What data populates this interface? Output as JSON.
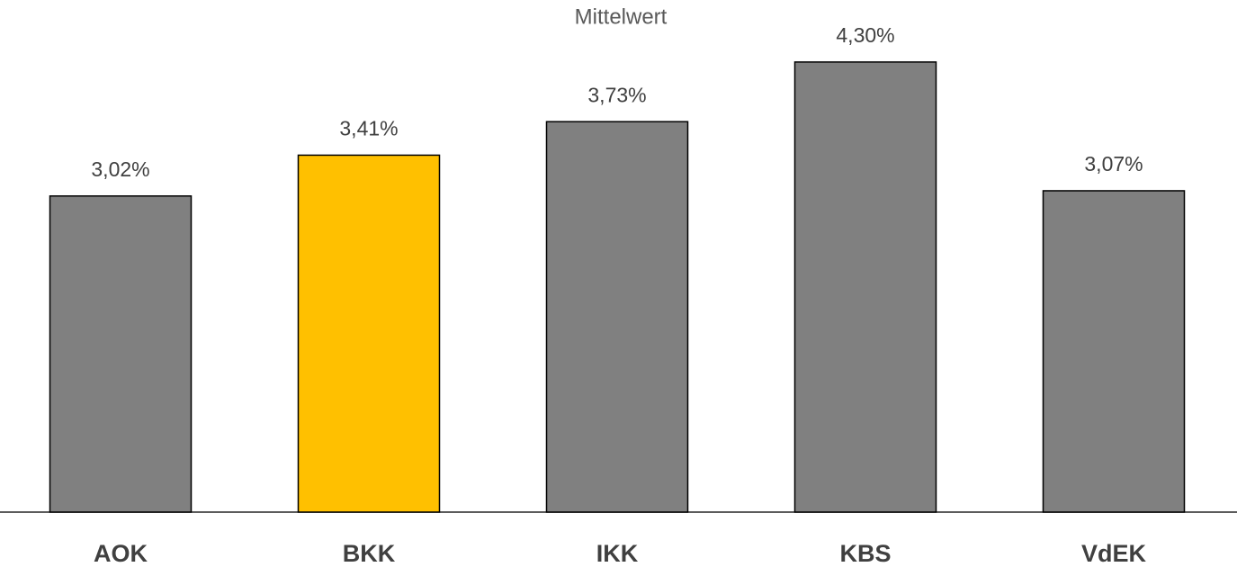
{
  "chart_data": {
    "type": "bar",
    "title": "Mittelwert",
    "categories": [
      "AOK",
      "BKK",
      "IKK",
      "KBS",
      "VdEK"
    ],
    "values": [
      3.02,
      3.41,
      3.73,
      4.3,
      3.07
    ],
    "value_labels": [
      "3,02%",
      "3,41%",
      "3,73%",
      "4,30%",
      "3,07%"
    ],
    "colors": [
      "#808080",
      "#ffc000",
      "#808080",
      "#808080",
      "#808080"
    ]
  }
}
